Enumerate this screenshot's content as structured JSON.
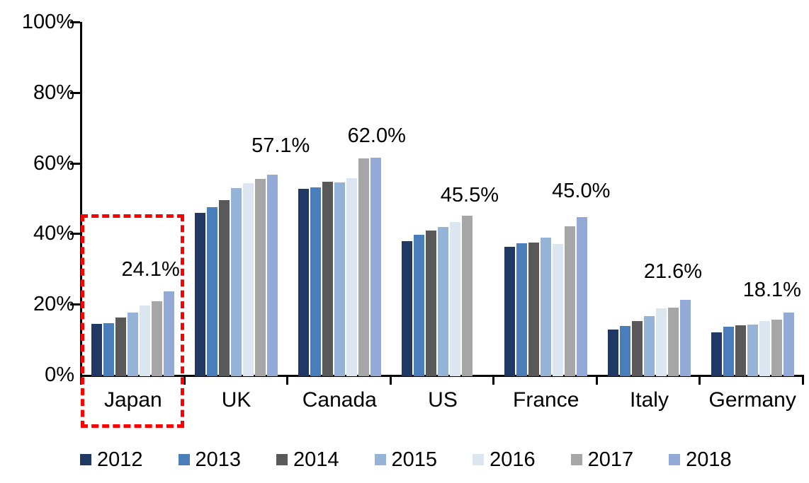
{
  "chart_data": {
    "type": "bar",
    "title": "",
    "xlabel": "",
    "ylabel": "",
    "ylim": [
      0,
      100
    ],
    "grid": false,
    "legend_position": "bottom",
    "categories": [
      "Japan",
      "UK",
      "Canada",
      "US",
      "France",
      "Italy",
      "Germany"
    ],
    "y_ticks": [
      {
        "label": "0%",
        "value": 0
      },
      {
        "label": "20%",
        "value": 20
      },
      {
        "label": "40%",
        "value": 40
      },
      {
        "label": "60%",
        "value": 60
      },
      {
        "label": "80%",
        "value": 80
      },
      {
        "label": "100%",
        "value": 100
      }
    ],
    "series": [
      {
        "name": "2012",
        "color": "#1F3864",
        "values": [
          14.8,
          46.3,
          53.1,
          38.2,
          36.6,
          13.3,
          12.5
        ]
      },
      {
        "name": "2013",
        "color": "#4A7EBB",
        "values": [
          15.0,
          47.8,
          53.6,
          40.1,
          37.7,
          14.2,
          14.0
        ]
      },
      {
        "name": "2014",
        "color": "#595959",
        "values": [
          16.6,
          50.0,
          55.2,
          41.2,
          37.8,
          15.6,
          14.4
        ]
      },
      {
        "name": "2015",
        "color": "#95B3D7",
        "values": [
          18.0,
          53.3,
          54.9,
          42.2,
          39.3,
          17.1,
          14.7
        ]
      },
      {
        "name": "2016",
        "color": "#DCE6F1",
        "values": [
          20.0,
          54.8,
          56.2,
          43.6,
          37.4,
          19.2,
          15.6
        ]
      },
      {
        "name": "2017",
        "color": "#A6A6A6",
        "values": [
          21.2,
          55.9,
          61.7,
          45.5,
          42.4,
          19.4,
          16.0
        ]
      },
      {
        "name": "2018",
        "color": "#93A9D6",
        "values": [
          24.1,
          57.1,
          62.0,
          null,
          45.0,
          21.6,
          18.1
        ]
      }
    ],
    "data_labels": [
      {
        "category": "Japan",
        "text": "24.1%",
        "x_pct": 67,
        "y_pct": 27.2
      },
      {
        "category": "UK",
        "text": "57.1%",
        "x_pct": 93,
        "y_pct": 62.3
      },
      {
        "category": "Canada",
        "text": "62.0%",
        "x_pct": 86,
        "y_pct": 65.2
      },
      {
        "category": "US",
        "text": "45.5%",
        "x_pct": 76,
        "y_pct": 48.3
      },
      {
        "category": "France",
        "text": "45.0%",
        "x_pct": 84,
        "y_pct": 49.6
      },
      {
        "category": "Italy",
        "text": "21.6%",
        "x_pct": 73,
        "y_pct": 26.6
      },
      {
        "category": "Germany",
        "text": "18.1%",
        "x_pct": 69,
        "y_pct": 21.4
      }
    ],
    "annotation": {
      "type": "dashed-box",
      "target_category": "Japan",
      "color": "#FF0000"
    }
  }
}
